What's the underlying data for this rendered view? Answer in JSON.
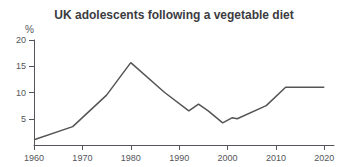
{
  "chart_data": {
    "type": "line",
    "title": "UK adolescents following a vegetable diet",
    "ylabel": "%",
    "x": [
      1960,
      1968,
      1975,
      1980,
      1987,
      1992,
      1994,
      1996,
      1999,
      2001,
      2002,
      2008,
      2012,
      2013,
      2018,
      2020
    ],
    "values": [
      1.0,
      3.5,
      9.5,
      15.7,
      10.0,
      6.5,
      7.8,
      6.5,
      4.2,
      5.2,
      5.0,
      7.5,
      11.0,
      11.0,
      11.0,
      11.0
    ],
    "color": "#555555",
    "xlim": [
      1960,
      2022
    ],
    "xticks": [
      1960,
      1970,
      1980,
      1990,
      2000,
      2010,
      2020
    ],
    "ylim": [
      0,
      20
    ],
    "yticks": [
      5,
      10,
      15,
      20
    ],
    "grid": false
  }
}
